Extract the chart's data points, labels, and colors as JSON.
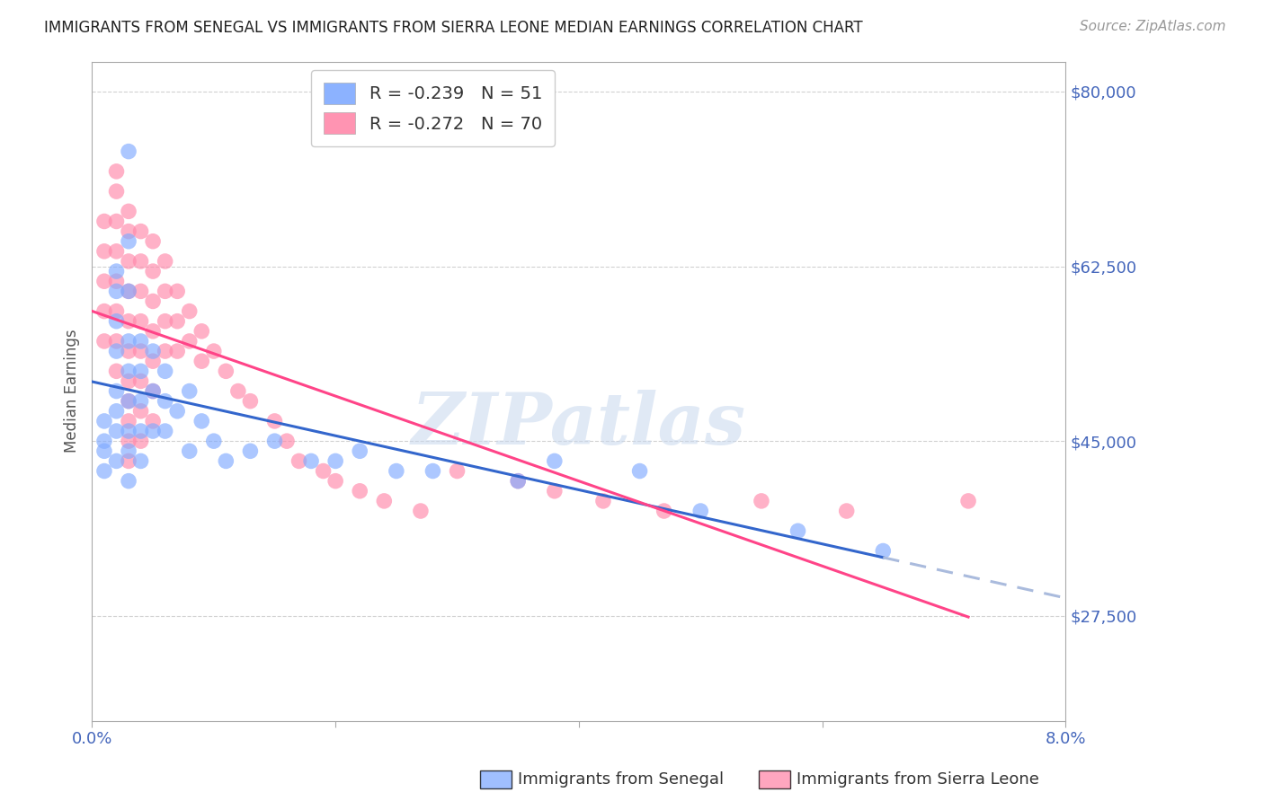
{
  "title": "IMMIGRANTS FROM SENEGAL VS IMMIGRANTS FROM SIERRA LEONE MEDIAN EARNINGS CORRELATION CHART",
  "source": "Source: ZipAtlas.com",
  "ylabel": "Median Earnings",
  "y_ticks": [
    27500,
    45000,
    62500,
    80000
  ],
  "y_tick_labels": [
    "$27,500",
    "$45,000",
    "$62,500",
    "$80,000"
  ],
  "x_min": 0.0,
  "x_max": 0.08,
  "y_min": 17000,
  "y_max": 83000,
  "senegal_R": -0.239,
  "senegal_N": 51,
  "sierra_leone_R": -0.272,
  "sierra_leone_N": 70,
  "senegal_color": "#80aaff",
  "sierra_leone_color": "#ff88aa",
  "senegal_line_color": "#3366cc",
  "sierra_leone_line_color": "#ff4488",
  "regression_extend_color": "#aabbdd",
  "watermark": "ZIPatlas",
  "legend_label_senegal": "Immigrants from Senegal",
  "legend_label_sierra": "Immigrants from Sierra Leone",
  "senegal_x": [
    0.001,
    0.001,
    0.001,
    0.001,
    0.002,
    0.002,
    0.002,
    0.002,
    0.002,
    0.002,
    0.002,
    0.002,
    0.003,
    0.003,
    0.003,
    0.003,
    0.003,
    0.003,
    0.003,
    0.003,
    0.003,
    0.004,
    0.004,
    0.004,
    0.004,
    0.004,
    0.005,
    0.005,
    0.005,
    0.006,
    0.006,
    0.006,
    0.007,
    0.008,
    0.008,
    0.009,
    0.01,
    0.011,
    0.013,
    0.015,
    0.018,
    0.02,
    0.022,
    0.025,
    0.028,
    0.035,
    0.038,
    0.045,
    0.05,
    0.058,
    0.065
  ],
  "senegal_y": [
    47000,
    45000,
    44000,
    42000,
    62000,
    60000,
    57000,
    54000,
    50000,
    48000,
    46000,
    43000,
    74000,
    65000,
    60000,
    55000,
    52000,
    49000,
    46000,
    44000,
    41000,
    55000,
    52000,
    49000,
    46000,
    43000,
    54000,
    50000,
    46000,
    52000,
    49000,
    46000,
    48000,
    50000,
    44000,
    47000,
    45000,
    43000,
    44000,
    45000,
    43000,
    43000,
    44000,
    42000,
    42000,
    41000,
    43000,
    42000,
    38000,
    36000,
    34000
  ],
  "sierra_leone_x": [
    0.001,
    0.001,
    0.001,
    0.001,
    0.001,
    0.002,
    0.002,
    0.002,
    0.002,
    0.002,
    0.002,
    0.002,
    0.002,
    0.003,
    0.003,
    0.003,
    0.003,
    0.003,
    0.003,
    0.003,
    0.003,
    0.003,
    0.003,
    0.003,
    0.004,
    0.004,
    0.004,
    0.004,
    0.004,
    0.004,
    0.004,
    0.004,
    0.005,
    0.005,
    0.005,
    0.005,
    0.005,
    0.005,
    0.005,
    0.006,
    0.006,
    0.006,
    0.006,
    0.007,
    0.007,
    0.007,
    0.008,
    0.008,
    0.009,
    0.009,
    0.01,
    0.011,
    0.012,
    0.013,
    0.015,
    0.016,
    0.017,
    0.019,
    0.02,
    0.022,
    0.024,
    0.027,
    0.03,
    0.035,
    0.038,
    0.042,
    0.047,
    0.055,
    0.062,
    0.072
  ],
  "sierra_leone_y": [
    67000,
    64000,
    61000,
    58000,
    55000,
    72000,
    70000,
    67000,
    64000,
    61000,
    58000,
    55000,
    52000,
    68000,
    66000,
    63000,
    60000,
    57000,
    54000,
    51000,
    49000,
    47000,
    45000,
    43000,
    66000,
    63000,
    60000,
    57000,
    54000,
    51000,
    48000,
    45000,
    65000,
    62000,
    59000,
    56000,
    53000,
    50000,
    47000,
    63000,
    60000,
    57000,
    54000,
    60000,
    57000,
    54000,
    58000,
    55000,
    56000,
    53000,
    54000,
    52000,
    50000,
    49000,
    47000,
    45000,
    43000,
    42000,
    41000,
    40000,
    39000,
    38000,
    42000,
    41000,
    40000,
    39000,
    38000,
    39000,
    38000,
    39000
  ]
}
